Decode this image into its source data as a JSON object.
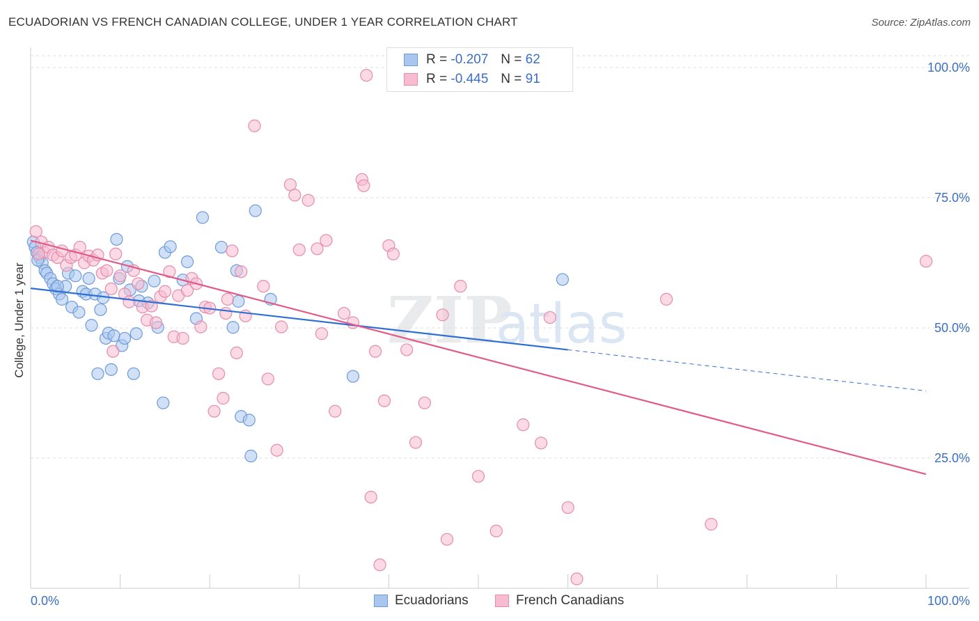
{
  "title": "ECUADORIAN VS FRENCH CANADIAN COLLEGE, UNDER 1 YEAR CORRELATION CHART",
  "source": "Source: ZipAtlas.com",
  "watermark": "ZIPatlas",
  "legend": {
    "r_label": "R =",
    "n_label": "N =",
    "rows": [
      {
        "r": "-0.207",
        "n": "62",
        "fill": "#a9c6ef",
        "stroke": "#6e9ad8"
      },
      {
        "r": "-0.445",
        "n": "91",
        "fill": "#f7bcd0",
        "stroke": "#e58bab"
      }
    ]
  },
  "chart_data": {
    "type": "scatter",
    "xlabel": "",
    "ylabel": "College, Under 1 year",
    "xlim": [
      0,
      100
    ],
    "ylim": [
      0,
      100
    ],
    "x_tick_labels": [
      "0.0%",
      "100.0%"
    ],
    "y_tick_labels": [
      {
        "value": 100,
        "label": "100.0%"
      },
      {
        "value": 75,
        "label": "75.0%"
      },
      {
        "value": 50,
        "label": "50.0%"
      },
      {
        "value": 25,
        "label": "25.0%"
      }
    ],
    "grid": "horizontal dashed",
    "legend_position": "top-center",
    "series": [
      {
        "name": "Ecuadorians",
        "color": "#a9c6ef",
        "stroke": "#6e9ad8",
        "line_color": "#2f6fd1",
        "trend": {
          "x0": 0,
          "y0": 57.6,
          "x1": 60,
          "y1": 45.8,
          "dash_to_x": 100,
          "dash_to_y": 37.9
        },
        "points": [
          [
            0.3,
            66.5
          ],
          [
            0.5,
            65.5
          ],
          [
            0.7,
            64.5
          ],
          [
            1,
            63.5
          ],
          [
            1.3,
            62.5
          ],
          [
            1.6,
            61
          ],
          [
            1.8,
            60.5
          ],
          [
            2.2,
            59.5
          ],
          [
            2.5,
            58.5
          ],
          [
            2.8,
            57.5
          ],
          [
            3.2,
            56.5
          ],
          [
            3.5,
            55.5
          ],
          [
            3.9,
            58
          ],
          [
            4.2,
            60.5
          ],
          [
            4.6,
            54
          ],
          [
            5,
            60
          ],
          [
            5.4,
            53
          ],
          [
            5.8,
            57
          ],
          [
            6.2,
            56.5
          ],
          [
            6.5,
            59.5
          ],
          [
            6.8,
            50.5
          ],
          [
            7.2,
            56.5
          ],
          [
            7.5,
            41.2
          ],
          [
            7.8,
            53.5
          ],
          [
            8.1,
            55.8
          ],
          [
            8.4,
            48
          ],
          [
            8.7,
            49
          ],
          [
            9,
            42
          ],
          [
            9.3,
            48.5
          ],
          [
            9.6,
            67
          ],
          [
            9.9,
            59.5
          ],
          [
            10.2,
            46.6
          ],
          [
            10.5,
            48
          ],
          [
            10.8,
            61.8
          ],
          [
            11.1,
            57.3
          ],
          [
            11.5,
            41.2
          ],
          [
            11.8,
            48.9
          ],
          [
            12.1,
            55.2
          ],
          [
            12.4,
            58
          ],
          [
            13.1,
            54.8
          ],
          [
            13.8,
            59
          ],
          [
            14.2,
            50.1
          ],
          [
            14.8,
            35.6
          ],
          [
            15,
            64.5
          ],
          [
            15.6,
            65.6
          ],
          [
            17,
            59.2
          ],
          [
            17.5,
            62.7
          ],
          [
            18.5,
            51.8
          ],
          [
            19.2,
            71.2
          ],
          [
            21.3,
            65.5
          ],
          [
            22.6,
            50.1
          ],
          [
            23,
            61
          ],
          [
            23.2,
            55.1
          ],
          [
            23.5,
            33
          ],
          [
            24.4,
            32.3
          ],
          [
            24.6,
            25.4
          ],
          [
            25.1,
            72.5
          ],
          [
            26.8,
            55.5
          ],
          [
            36,
            40.7
          ],
          [
            59.4,
            59.3
          ],
          [
            0.8,
            63
          ],
          [
            3,
            58
          ]
        ]
      },
      {
        "name": "French Canadians",
        "color": "#f7bcd0",
        "stroke": "#e58bab",
        "line_color": "#e05a8a",
        "trend": {
          "x0": 0,
          "y0": 66.8,
          "x1": 100,
          "y1": 21.9
        },
        "points": [
          [
            0.6,
            68.5
          ],
          [
            1.2,
            66.5
          ],
          [
            1.5,
            64.5
          ],
          [
            2,
            65.5
          ],
          [
            2.5,
            64
          ],
          [
            3,
            63.5
          ],
          [
            3.5,
            64.8
          ],
          [
            4,
            62
          ],
          [
            4.5,
            63.5
          ],
          [
            5,
            64
          ],
          [
            5.5,
            65.5
          ],
          [
            6,
            62.5
          ],
          [
            6.5,
            63.8
          ],
          [
            7,
            63
          ],
          [
            7.5,
            64
          ],
          [
            8,
            60.5
          ],
          [
            8.5,
            61
          ],
          [
            9,
            57.5
          ],
          [
            9.5,
            64.2
          ],
          [
            10,
            60
          ],
          [
            10.5,
            56.5
          ],
          [
            11,
            55
          ],
          [
            11.5,
            61
          ],
          [
            12,
            58.5
          ],
          [
            12.5,
            54
          ],
          [
            13,
            51.5
          ],
          [
            13.5,
            54.2
          ],
          [
            14,
            51
          ],
          [
            14.5,
            56
          ],
          [
            15,
            57
          ],
          [
            15.5,
            60.8
          ],
          [
            16,
            48.3
          ],
          [
            16.5,
            56.2
          ],
          [
            17,
            48
          ],
          [
            17.5,
            57.2
          ],
          [
            18,
            59.5
          ],
          [
            18.5,
            58.5
          ],
          [
            19,
            50.2
          ],
          [
            19.5,
            54
          ],
          [
            20,
            53.8
          ],
          [
            20.5,
            34
          ],
          [
            21,
            41.2
          ],
          [
            21.5,
            36.5
          ],
          [
            22,
            55.5
          ],
          [
            22.5,
            64.8
          ],
          [
            23,
            45.2
          ],
          [
            23.5,
            60.8
          ],
          [
            24,
            52.3
          ],
          [
            25,
            88.8
          ],
          [
            26,
            58
          ],
          [
            26.5,
            40.2
          ],
          [
            27.5,
            26.5
          ],
          [
            28,
            50.2
          ],
          [
            29,
            77.5
          ],
          [
            29.5,
            75.5
          ],
          [
            30,
            65
          ],
          [
            31,
            74.5
          ],
          [
            32,
            65.2
          ],
          [
            32.5,
            48.9
          ],
          [
            33,
            66.8
          ],
          [
            34,
            34
          ],
          [
            35,
            52.8
          ],
          [
            36,
            51
          ],
          [
            37,
            78.5
          ],
          [
            37.2,
            77.3
          ],
          [
            37.5,
            98.5
          ],
          [
            38,
            17.5
          ],
          [
            38.5,
            45.5
          ],
          [
            39,
            4.5
          ],
          [
            39.5,
            36
          ],
          [
            40,
            65.8
          ],
          [
            40.5,
            64.2
          ],
          [
            42,
            45.8
          ],
          [
            43,
            28
          ],
          [
            44,
            35.6
          ],
          [
            46,
            52.5
          ],
          [
            48,
            58
          ],
          [
            50,
            21.5
          ],
          [
            52,
            11
          ],
          [
            55,
            31.4
          ],
          [
            57,
            27.9
          ],
          [
            58,
            52
          ],
          [
            60,
            15.5
          ],
          [
            61,
            1.8
          ],
          [
            71,
            55.5
          ],
          [
            76,
            12.3
          ],
          [
            100,
            62.8
          ],
          [
            0.9,
            64.2
          ],
          [
            9.2,
            45.5
          ],
          [
            21.8,
            52.8
          ],
          [
            46.5,
            9.4
          ]
        ]
      }
    ]
  },
  "bottom_legend": [
    {
      "label": "Ecuadorians",
      "fill": "#a9c6ef",
      "stroke": "#6e9ad8"
    },
    {
      "label": "French Canadians",
      "fill": "#f7bcd0",
      "stroke": "#e58bab"
    }
  ]
}
